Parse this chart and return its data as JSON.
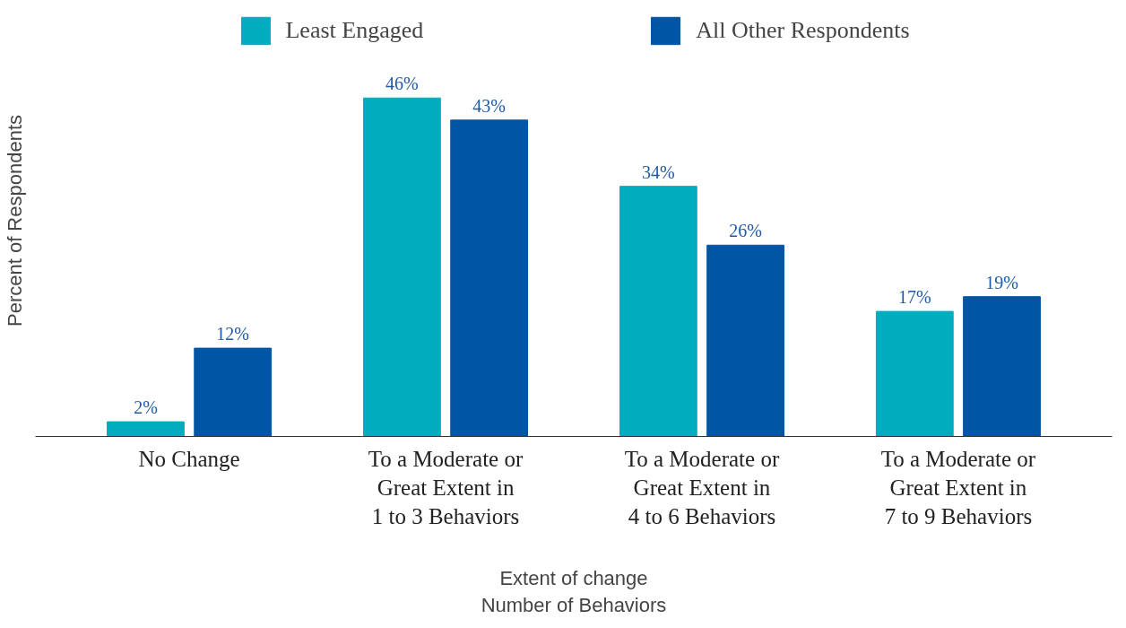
{
  "chart_data": {
    "type": "bar",
    "xlabel": "Extent of change\nNumber of Behaviors",
    "ylabel": "Percent of Respondents",
    "categories": [
      "No Change",
      "To a Moderate or\nGreat Extent in\n1 to 3 Behaviors",
      "To a Moderate or\nGreat Extent in\n4 to 6 Behaviors",
      "To a Moderate or\nGreat Extent in\n7 to 9 Behaviors"
    ],
    "series": [
      {
        "name": "Least Engaged",
        "color": "#00adbe",
        "values": [
          2,
          46,
          34,
          17
        ],
        "value_labels": [
          "2%",
          "46%",
          "34%",
          "17%"
        ]
      },
      {
        "name": "All Other Respondents",
        "color": "#0055a4",
        "values": [
          12,
          43,
          26,
          19
        ],
        "value_labels": [
          "12%",
          "43%",
          "26%",
          "19%"
        ]
      }
    ],
    "tick_labels": "x",
    "legend": "top"
  }
}
